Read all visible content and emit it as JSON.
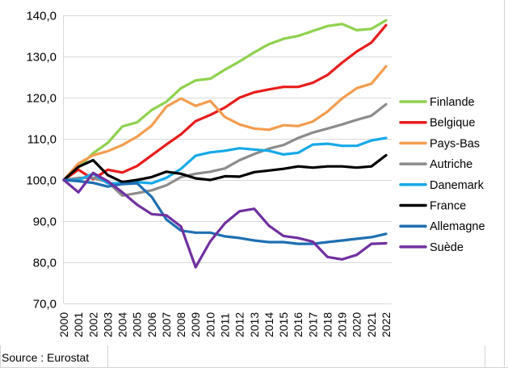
{
  "source": "Source : Eurostat",
  "chart_data": {
    "type": "line",
    "title": "",
    "xlabel": "",
    "ylabel": "",
    "ylim": [
      70,
      140
    ],
    "yticks": [
      "70,0",
      "80,0",
      "90,0",
      "100,0",
      "110,0",
      "120,0",
      "130,0",
      "140,0"
    ],
    "grid": true,
    "legend_position": "right",
    "x": [
      "2000",
      "2001",
      "2002",
      "2003",
      "2004",
      "2005",
      "2006",
      "2007",
      "2008",
      "2009",
      "2010",
      "2011",
      "2012",
      "2013",
      "2014",
      "2015",
      "2016",
      "2017",
      "2018",
      "2019",
      "2020",
      "2021",
      "2022"
    ],
    "series": [
      {
        "name": "Finlande",
        "color": "#8fd14f",
        "values": [
          100,
          103,
          106.5,
          109,
          113,
          114,
          117,
          119,
          122.3,
          124.2,
          124.6,
          126.8,
          128.8,
          131,
          133,
          134.3,
          135,
          136.2,
          137.4,
          137.9,
          136.4,
          136.7,
          138.8
        ]
      },
      {
        "name": "Belgique",
        "color": "#e81c1c",
        "values": [
          100,
          102.5,
          100.2,
          102.5,
          101.8,
          103.4,
          106,
          108.6,
          111.1,
          114.3,
          115.8,
          117.6,
          120,
          121.3,
          122,
          122.6,
          122.6,
          123.6,
          125.5,
          128.5,
          131.2,
          133.4,
          137.6
        ]
      },
      {
        "name": "Pays-Bas",
        "color": "#f39c4f",
        "values": [
          100,
          104,
          106,
          107,
          108.5,
          110.5,
          113.2,
          117.8,
          119.8,
          118,
          119.2,
          115.3,
          113.5,
          112.5,
          112.2,
          113.3,
          113.1,
          114.2,
          116.6,
          119.8,
          122.3,
          123.4,
          127.6
        ]
      },
      {
        "name": "Autriche",
        "color": "#8c8c8c",
        "values": [
          100,
          100.5,
          100.5,
          99.5,
          96.2,
          96.8,
          97.5,
          98.7,
          100.7,
          101.5,
          102,
          102.8,
          104.8,
          106.3,
          107.6,
          108.5,
          110.2,
          111.5,
          112.5,
          113.5,
          114.6,
          115.6,
          118.4
        ]
      },
      {
        "name": "Danemark",
        "color": "#16a9e8",
        "values": [
          100,
          100,
          101.5,
          99.2,
          99.2,
          99.5,
          99.2,
          100.5,
          102.7,
          105.9,
          106.7,
          107.1,
          107.7,
          107.4,
          107.1,
          106.2,
          106.6,
          108.6,
          108.8,
          108.3,
          108.3,
          109.6,
          110.2
        ]
      },
      {
        "name": "France",
        "color": "#000000",
        "values": [
          100,
          103.2,
          104.8,
          101.2,
          99.5,
          100,
          100.7,
          102,
          101.5,
          100.4,
          100,
          100.9,
          100.8,
          101.9,
          102.3,
          102.7,
          103.3,
          103,
          103.3,
          103.3,
          103,
          103.3,
          106
        ]
      },
      {
        "name": "Allemagne",
        "color": "#1f6fb2",
        "values": [
          100,
          99.7,
          99.3,
          98.4,
          99,
          99.2,
          95.9,
          90.4,
          87.7,
          87.2,
          87.2,
          86.3,
          85.9,
          85.3,
          84.9,
          84.9,
          84.5,
          84.5,
          84.9,
          85.3,
          85.7,
          86.1,
          86.9
        ]
      },
      {
        "name": "Suède",
        "color": "#7030a0",
        "values": [
          100,
          97,
          101.7,
          99.7,
          97,
          94,
          91.7,
          91.4,
          88.7,
          78.8,
          85.1,
          89.5,
          92.4,
          93,
          88.9,
          86.4,
          85.9,
          85,
          81.3,
          80.7,
          81.8,
          84.5,
          84.6
        ]
      }
    ]
  }
}
